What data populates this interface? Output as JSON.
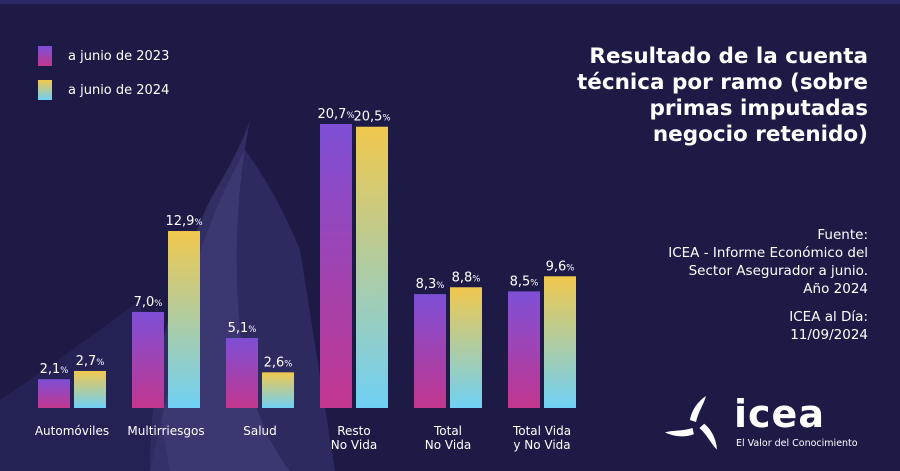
{
  "colors": {
    "background": "#1d1b46",
    "bar_2023_top": "#7d4fd6",
    "bar_2023_bottom": "#c2378f",
    "bar_2024_top": "#f1c84d",
    "bar_2024_bottom": "#6fd0f5"
  },
  "title": "Resultado de la cuenta técnica por ramo (sobre primas imputadas negocio retenido)",
  "source": {
    "label": "Fuente:",
    "line1": "ICEA - Informe Económico del",
    "line2": "Sector Asegurador a junio.",
    "line3": "Año 2024"
  },
  "icea_day": {
    "line1": "ICEA al Día:",
    "line2": "11/09/2024"
  },
  "logo": {
    "word": "icea",
    "tagline": "El Valor del Conocimiento",
    "icon": "icea-triskelion-icon"
  },
  "chart_data": {
    "type": "bar",
    "title": "Resultado de la cuenta técnica por ramo (sobre primas imputadas negocio retenido)",
    "xlabel": "",
    "ylabel": "",
    "ylim": [
      0,
      22
    ],
    "grid": false,
    "legend": "top-left",
    "unit": "%",
    "categories": [
      [
        "Automóviles"
      ],
      [
        "Multirriesgos"
      ],
      [
        "Salud"
      ],
      [
        "Resto",
        "No Vida"
      ],
      [
        "Total",
        "No Vida"
      ],
      [
        "Total Vida",
        "y No Vida"
      ]
    ],
    "series": [
      {
        "name": "a junio de 2023",
        "values": [
          2.1,
          7.0,
          5.1,
          20.7,
          8.3,
          8.5
        ],
        "labels": [
          "2,1",
          "7,0",
          "5,1",
          "20,7",
          "8,3",
          "8,5"
        ]
      },
      {
        "name": "a junio de 2024",
        "values": [
          2.7,
          12.9,
          2.6,
          20.5,
          8.8,
          9.6
        ],
        "labels": [
          "2,7",
          "12,9",
          "2,6",
          "20,5",
          "8,8",
          "9,6"
        ]
      }
    ]
  }
}
